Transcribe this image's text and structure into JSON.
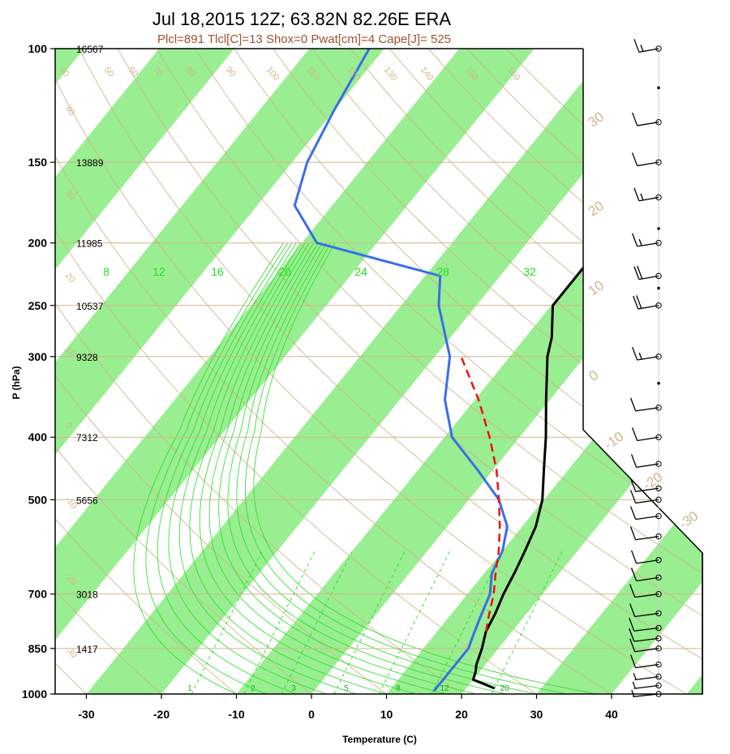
{
  "title": "Jul 18,2015 12Z; 63.82N 82.26E ERA",
  "subtitle": "Plcl=891 Tlcl[C]=13 Shox=0 Pwat[cm]=4 Cape[J]= 525",
  "colors": {
    "temperature": "#000000",
    "dewpoint": "#3a6ee8",
    "parcel": "#ee1111",
    "isotherm_band": "#98ee90",
    "dry_adiabat": "#d2b48c",
    "moist_adiabat": "#22dd22",
    "frame": "#000000",
    "mixing_label": "#22dd22"
  },
  "chart_data": {
    "type": "line",
    "title": "Jul 18,2015 12Z; 63.82N 82.26E ERA",
    "subtitle": "Plcl=891 Tlcl[C]=13 Shox=0 Pwat[cm]=4 Cape[J]= 525",
    "xlabel": "Temperature (C)",
    "ylabel": "P (hPa)",
    "x_scale": "skewed",
    "y_scale": "log",
    "xlim": [
      -33,
      52
    ],
    "ylim": [
      1000,
      100
    ],
    "x_ticks": [
      "-30",
      "-20",
      "-10",
      "0",
      "10",
      "20",
      "30",
      "40"
    ],
    "y_ticks": [
      "100",
      "150",
      "200",
      "250",
      "300",
      "400",
      "500",
      "700",
      "850",
      "1000"
    ],
    "heights_m": {
      "pressures": [
        100,
        150,
        200,
        250,
        300,
        400,
        500,
        700,
        850,
        1000
      ],
      "labels": [
        "16567",
        "13889",
        "11985",
        "10537",
        "9328",
        "7312",
        "5656",
        "3018",
        "1417",
        ""
      ]
    },
    "mixing_ratio_labels": [
      "8",
      "12",
      "16",
      "20",
      "24",
      "28",
      "32"
    ],
    "low_mixing_labels": [
      "1",
      "2",
      "3",
      "5",
      "8",
      "12",
      "20"
    ],
    "dry_adiabat_labels": [
      "40",
      "50",
      "60",
      "70",
      "80",
      "90",
      "100",
      "110",
      "120",
      "130",
      "140",
      "150",
      "160"
    ],
    "left_theta_labels": [
      "40",
      "30",
      "20",
      "10",
      "0",
      "-10",
      "-20",
      "-30"
    ],
    "right_theta_labels": [
      "30",
      "20",
      "10",
      "0",
      "-10",
      "-20",
      "-30",
      "20",
      "10",
      "20",
      "30"
    ],
    "series": [
      {
        "name": "temperature",
        "points": [
          [
            980,
            23.8
          ],
          [
            950,
            20
          ],
          [
            925,
            19.5
          ],
          [
            900,
            18.8
          ],
          [
            850,
            17.8
          ],
          [
            800,
            16.5
          ],
          [
            750,
            15.8
          ],
          [
            700,
            14.8
          ],
          [
            650,
            14.0
          ],
          [
            600,
            13.0
          ],
          [
            550,
            11.8
          ],
          [
            500,
            9.8
          ],
          [
            450,
            6.8
          ],
          [
            400,
            3.5
          ],
          [
            350,
            -0.5
          ],
          [
            300,
            -5.0
          ],
          [
            280,
            -6.5
          ],
          [
            250,
            -9.8
          ],
          [
            225,
            -9.8
          ],
          [
            200,
            -9.8
          ],
          [
            175,
            -14.0
          ],
          [
            150,
            -17.0
          ],
          [
            125,
            -20.5
          ],
          [
            100,
            -25.5
          ]
        ]
      },
      {
        "name": "dewpoint",
        "points": [
          [
            990,
            16.0
          ],
          [
            950,
            16.0
          ],
          [
            925,
            16.0
          ],
          [
            900,
            16.0
          ],
          [
            850,
            16.0
          ],
          [
            800,
            15.0
          ],
          [
            750,
            14.0
          ],
          [
            700,
            13.0
          ],
          [
            650,
            11.0
          ],
          [
            600,
            10.0
          ],
          [
            550,
            8.0
          ],
          [
            500,
            4.0
          ],
          [
            450,
            -2.0
          ],
          [
            400,
            -9.0
          ],
          [
            350,
            -14.0
          ],
          [
            300,
            -18.0
          ],
          [
            250,
            -25.0
          ],
          [
            225,
            -28.0
          ],
          [
            200,
            -48.0
          ],
          [
            175,
            -55.0
          ],
          [
            150,
            -58.0
          ],
          [
            125,
            -60.0
          ],
          [
            100,
            -62.0
          ]
        ]
      },
      {
        "name": "parcel",
        "points": [
          [
            800,
            16.5
          ],
          [
            750,
            15.0
          ],
          [
            700,
            13.5
          ],
          [
            650,
            11.5
          ],
          [
            600,
            9.5
          ],
          [
            550,
            7.0
          ],
          [
            500,
            4.0
          ],
          [
            450,
            0.5
          ],
          [
            400,
            -4.0
          ],
          [
            350,
            -9.5
          ],
          [
            300,
            -16.5
          ]
        ]
      }
    ],
    "wind_barbs": [
      {
        "p": 100,
        "dir": 270,
        "spd": 15
      },
      {
        "p": 115,
        "dir": 0,
        "spd": 0
      },
      {
        "p": 130,
        "dir": 260,
        "spd": 10
      },
      {
        "p": 150,
        "dir": 260,
        "spd": 10
      },
      {
        "p": 170,
        "dir": 270,
        "spd": 15
      },
      {
        "p": 190,
        "dir": 0,
        "spd": 0
      },
      {
        "p": 200,
        "dir": 260,
        "spd": 15
      },
      {
        "p": 225,
        "dir": 270,
        "spd": 20
      },
      {
        "p": 235,
        "dir": 0,
        "spd": 0
      },
      {
        "p": 250,
        "dir": 265,
        "spd": 20
      },
      {
        "p": 300,
        "dir": 260,
        "spd": 15
      },
      {
        "p": 330,
        "dir": 0,
        "spd": 0
      },
      {
        "p": 360,
        "dir": 250,
        "spd": 10
      },
      {
        "p": 400,
        "dir": 260,
        "spd": 10
      },
      {
        "p": 440,
        "dir": 255,
        "spd": 10
      },
      {
        "p": 480,
        "dir": 250,
        "spd": 10
      },
      {
        "p": 500,
        "dir": 250,
        "spd": 10
      },
      {
        "p": 530,
        "dir": 250,
        "spd": 10
      },
      {
        "p": 570,
        "dir": 250,
        "spd": 10
      },
      {
        "p": 620,
        "dir": 255,
        "spd": 10
      },
      {
        "p": 660,
        "dir": 255,
        "spd": 10
      },
      {
        "p": 700,
        "dir": 245,
        "spd": 10
      },
      {
        "p": 750,
        "dir": 245,
        "spd": 10
      },
      {
        "p": 790,
        "dir": 240,
        "spd": 10
      },
      {
        "p": 820,
        "dir": 240,
        "spd": 10
      },
      {
        "p": 850,
        "dir": 245,
        "spd": 10
      },
      {
        "p": 900,
        "dir": 250,
        "spd": 10
      },
      {
        "p": 940,
        "dir": 245,
        "spd": 5
      },
      {
        "p": 970,
        "dir": 240,
        "spd": 5
      },
      {
        "p": 1000,
        "dir": 230,
        "spd": 5
      }
    ]
  }
}
